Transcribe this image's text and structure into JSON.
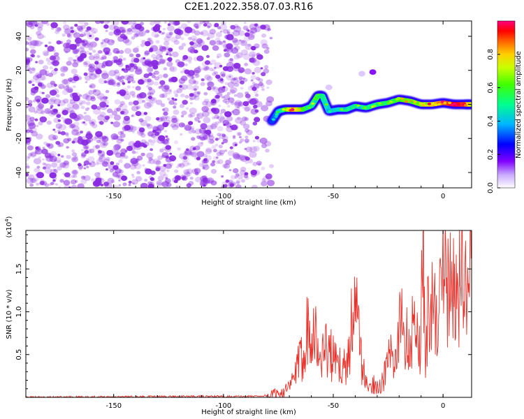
{
  "title": "C2E1.2022.358.07.03.R16",
  "colors": {
    "spectrum_purple": "#8a2be2",
    "line_red": "#e8312a",
    "colorbar": [
      "#ffffff",
      "#8000ff",
      "#0000ff",
      "#00c0ff",
      "#00ff80",
      "#c0ff00",
      "#ffd000",
      "#ff4000",
      "#ff0060"
    ]
  },
  "chart_data": [
    {
      "type": "heatmap",
      "title": "C2E1.2022.358.07.03.R16",
      "xlabel": "Height of straight line (km)",
      "ylabel": "Frequency (Hz)",
      "xlim": [
        -190,
        13
      ],
      "ylim": [
        -49,
        49
      ],
      "xticks": [
        -150,
        -100,
        -50,
        0
      ],
      "yticks": [
        -40,
        -20,
        0,
        20,
        40
      ],
      "colorbar": {
        "label": "Normalized spectral amplitude",
        "ticks": [
          0.0,
          0.2,
          0.4,
          0.6,
          0.8
        ],
        "range": [
          0,
          1
        ]
      },
      "noise_region_x": [
        -190,
        -78
      ],
      "ridge": {
        "x": [
          -78,
          -75,
          -72,
          -68,
          -64,
          -60,
          -57,
          -55,
          -52,
          -48,
          -44,
          -40,
          -35,
          -30,
          -25,
          -20,
          -15,
          -10,
          -5,
          0,
          5,
          10,
          13
        ],
        "y": [
          -10,
          -4,
          -3,
          -3,
          -3,
          -1,
          5,
          5,
          -4,
          -3,
          -3,
          -1,
          -2,
          0,
          1,
          3,
          2,
          0,
          0,
          1,
          0,
          0,
          0
        ],
        "amplitude": [
          0.3,
          0.35,
          0.55,
          0.85,
          0.6,
          0.45,
          0.6,
          0.5,
          0.4,
          0.4,
          0.5,
          0.45,
          0.5,
          0.5,
          0.55,
          0.6,
          0.65,
          0.65,
          0.8,
          0.85,
          0.95,
          0.9,
          0.7
        ]
      },
      "isolated_blobs": [
        {
          "x": -32,
          "y": 19,
          "amplitude": 0.15
        },
        {
          "x": -37,
          "y": 18,
          "amplitude": 0.05
        },
        {
          "x": -52,
          "y": 10,
          "amplitude": 0.05
        }
      ]
    },
    {
      "type": "line",
      "xlabel": "Height of straight line (km)",
      "ylabel": "SNR (10 * v/v)",
      "y_multiplier": "(x10",
      "y_multiplier_exp": "4",
      "y_multiplier_close": ")",
      "xlim": [
        -190,
        13
      ],
      "ylim": [
        0,
        19500
      ],
      "xticks": [
        -150,
        -100,
        -50,
        0
      ],
      "yticks": [
        5000,
        10000,
        15000
      ],
      "ytick_labels": [
        "0.5",
        "1.0",
        "1.5"
      ],
      "series": [
        {
          "x": [
            -190,
            -120,
            -90,
            -80,
            -75,
            -70,
            -67,
            -64,
            -62,
            -60,
            -58,
            -56,
            -54,
            -52,
            -50,
            -48,
            -46,
            -44,
            -42,
            -41,
            -39,
            -37,
            -35,
            -33,
            -31,
            -29,
            -27,
            -25,
            -23,
            -21,
            -20,
            -19,
            -17,
            -15,
            -13,
            -11,
            -10,
            -9,
            -8,
            -7,
            -6,
            -5,
            -4,
            -3,
            -2,
            -1,
            0,
            2,
            4,
            6,
            8,
            10,
            12,
            13
          ],
          "y": [
            0,
            100,
            100,
            200,
            500,
            1000,
            3000,
            5000,
            8000,
            9500,
            7000,
            4000,
            6000,
            5500,
            4500,
            3500,
            4000,
            3000,
            8000,
            10500,
            9000,
            4000,
            1500,
            1000,
            1800,
            1200,
            2000,
            5000,
            4500,
            3000,
            9000,
            10800,
            7000,
            6000,
            11000,
            4500,
            9000,
            19500,
            3000,
            9000,
            13000,
            10000,
            9500,
            11000,
            10500,
            11500,
            14000,
            12000,
            13000,
            12000,
            14000,
            11500,
            14500,
            17500
          ]
        }
      ]
    }
  ]
}
